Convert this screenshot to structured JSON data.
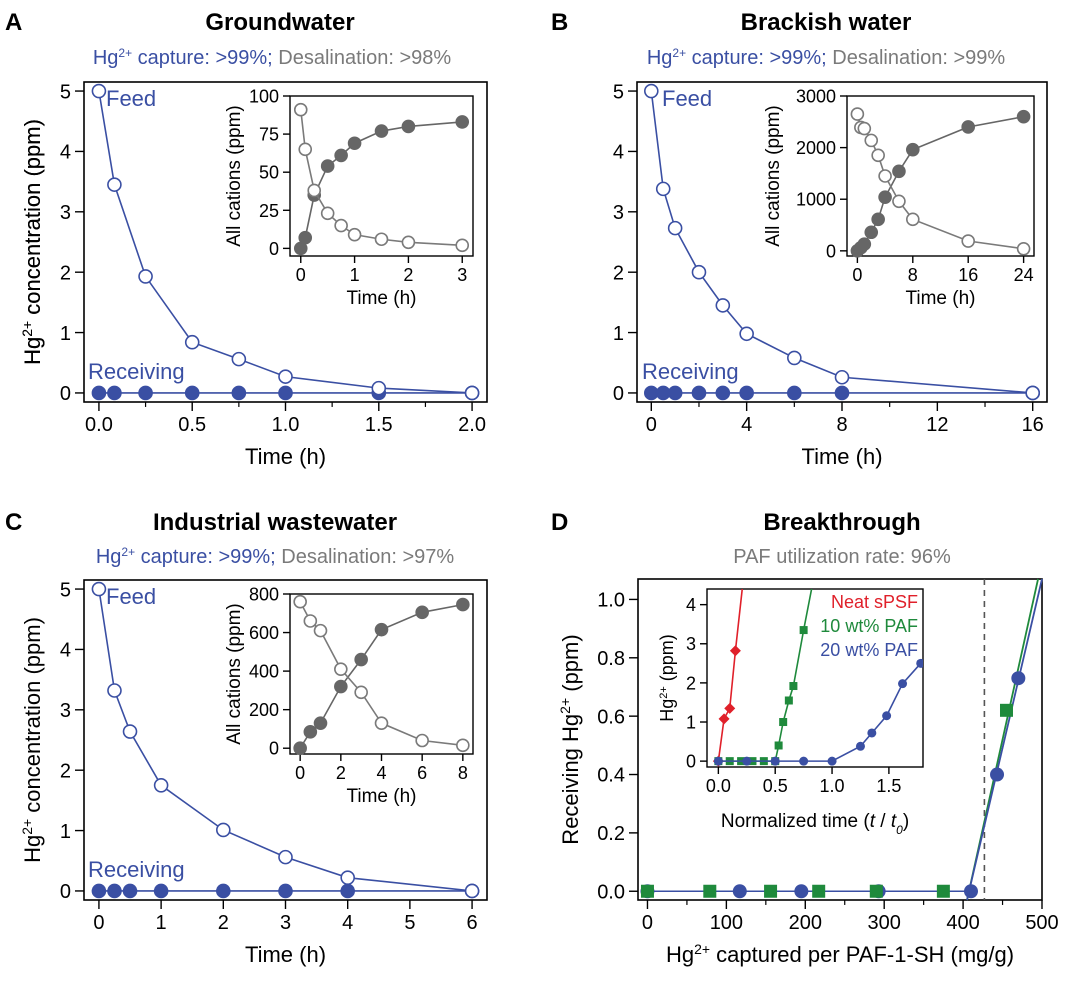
{
  "colors": {
    "blue": "#3a4fa3",
    "gray": "#7a7a7a",
    "darkgray": "#666666",
    "red": "#e0202a",
    "green": "#1f8a3c",
    "dash": "#555555"
  },
  "chart_data": [
    {
      "panel": "A",
      "type": "line",
      "title": "Groundwater",
      "subtitle": {
        "blue_pre": "Hg",
        "blue_sup": "2+",
        "blue_post": " capture: >99%;",
        "gray": " Desalination: >98%"
      },
      "xlabel": "Time (h)",
      "ylabel": {
        "pre": "Hg",
        "sup": "2+",
        "post": " concentration (ppm)"
      },
      "xlim": [
        -0.08,
        2.08
      ],
      "ylim": [
        -0.15,
        5.15
      ],
      "xticks": [
        0.0,
        0.5,
        1.0,
        1.5,
        2.0
      ],
      "xtick_labels": [
        "0.0",
        "0.5",
        "1.0",
        "1.5",
        "2.0"
      ],
      "yticks": [
        0,
        1,
        2,
        3,
        4,
        5
      ],
      "ytick_labels": [
        "0",
        "1",
        "2",
        "3",
        "4",
        "5"
      ],
      "minor_x": [
        0.25,
        0.75,
        1.25,
        1.75
      ],
      "annotations": {
        "feed": "Feed",
        "receiving": "Receiving"
      },
      "series": [
        {
          "name": "Feed",
          "x": [
            0,
            0.083,
            0.25,
            0.5,
            0.75,
            1.0,
            1.5,
            2.0
          ],
          "y": [
            5.0,
            3.45,
            1.93,
            0.84,
            0.56,
            0.27,
            0.08,
            0.0
          ]
        },
        {
          "name": "Receiving",
          "x": [
            0,
            0.083,
            0.25,
            0.5,
            0.75,
            1.0,
            1.5,
            2.0
          ],
          "y": [
            0,
            0,
            0,
            0,
            0,
            0,
            0,
            0
          ]
        }
      ],
      "inset": {
        "xlabel": "Time (h)",
        "ylabel": "All cations (ppm)",
        "xlim": [
          -0.2,
          3.2
        ],
        "ylim": [
          -5,
          100
        ],
        "xticks": [
          0,
          1,
          2,
          3
        ],
        "xtick_labels": [
          "0",
          "1",
          "2",
          "3"
        ],
        "yticks": [
          0,
          25,
          50,
          75,
          100
        ],
        "ytick_labels": [
          "0",
          "25",
          "50",
          "75",
          "100"
        ],
        "series": [
          {
            "name": "Feed",
            "x": [
              0,
              0.083,
              0.25,
              0.5,
              0.75,
              1.0,
              1.5,
              2.0,
              3.0
            ],
            "y": [
              91,
              65,
              38,
              23,
              15,
              9,
              6,
              4,
              2
            ]
          },
          {
            "name": "Receiving",
            "x": [
              0,
              0.083,
              0.25,
              0.5,
              0.75,
              1.0,
              1.5,
              2.0,
              3.0
            ],
            "y": [
              0,
              7,
              35,
              54,
              61,
              69,
              77,
              80,
              83
            ]
          }
        ]
      }
    },
    {
      "panel": "B",
      "type": "line",
      "title": "Brackish water",
      "subtitle": {
        "blue_pre": "Hg",
        "blue_sup": "2+",
        "blue_post": " capture: >99%;",
        "gray": " Desalination: >99%"
      },
      "xlabel": "Time (h)",
      "ylabel": {
        "pre": "Hg",
        "sup": "2+",
        "post": " concentration (ppm)"
      },
      "xlim": [
        -0.6,
        16.6
      ],
      "ylim": [
        -0.15,
        5.15
      ],
      "xticks": [
        0,
        4,
        8,
        12,
        16
      ],
      "xtick_labels": [
        "0",
        "4",
        "8",
        "12",
        "16"
      ],
      "yticks": [
        0,
        1,
        2,
        3,
        4,
        5
      ],
      "ytick_labels": [
        "0",
        "1",
        "2",
        "3",
        "4",
        "5"
      ],
      "minor_x": [
        2,
        6,
        10,
        14
      ],
      "annotations": {
        "feed": "Feed",
        "receiving": "Receiving"
      },
      "series": [
        {
          "name": "Feed",
          "x": [
            0,
            0.5,
            1,
            2,
            3,
            4,
            6,
            8,
            16
          ],
          "y": [
            5.0,
            3.38,
            2.73,
            2.0,
            1.45,
            0.98,
            0.58,
            0.26,
            0.0
          ]
        },
        {
          "name": "Receiving",
          "x": [
            0,
            0.5,
            1,
            2,
            3,
            4,
            6,
            8,
            16
          ],
          "y": [
            0,
            0,
            0,
            0,
            0,
            0,
            0,
            0,
            0
          ]
        }
      ],
      "inset": {
        "xlabel": "Time (h)",
        "ylabel": "All cations (ppm)",
        "xlim": [
          -1.5,
          25.5
        ],
        "ylim": [
          -100,
          3000
        ],
        "xticks": [
          0,
          8,
          16,
          24
        ],
        "xtick_labels": [
          "0",
          "8",
          "16",
          "24"
        ],
        "yticks": [
          0,
          1000,
          2000,
          3000
        ],
        "ytick_labels": [
          "0",
          "1000",
          "2000",
          "3000"
        ],
        "series": [
          {
            "name": "Feed",
            "x": [
              0,
              0.5,
              1,
              2,
              3,
              4,
              6,
              8,
              16,
              24
            ],
            "y": [
              2650,
              2390,
              2370,
              2140,
              1850,
              1450,
              960,
              610,
              190,
              40
            ]
          },
          {
            "name": "Receiving",
            "x": [
              0,
              0.5,
              1,
              2,
              3,
              4,
              6,
              8,
              16,
              24
            ],
            "y": [
              0,
              60,
              130,
              360,
              610,
              1040,
              1540,
              1960,
              2400,
              2600
            ]
          }
        ]
      }
    },
    {
      "panel": "C",
      "type": "line",
      "title": "Industrial wastewater",
      "subtitle": {
        "blue_pre": "Hg",
        "blue_sup": "2+",
        "blue_post": " capture: >99%;",
        "gray": " Desalination: >97%"
      },
      "xlabel": "Time (h)",
      "ylabel": {
        "pre": "Hg",
        "sup": "2+",
        "post": " concentration (ppm)"
      },
      "xlim": [
        -0.24,
        6.24
      ],
      "ylim": [
        -0.15,
        5.15
      ],
      "xticks": [
        0,
        1,
        2,
        3,
        4,
        5,
        6
      ],
      "xtick_labels": [
        "0",
        "1",
        "2",
        "3",
        "4",
        "5",
        "6"
      ],
      "yticks": [
        0,
        1,
        2,
        3,
        4,
        5
      ],
      "ytick_labels": [
        "0",
        "1",
        "2",
        "3",
        "4",
        "5"
      ],
      "minor_x": [],
      "annotations": {
        "feed": "Feed",
        "receiving": "Receiving"
      },
      "series": [
        {
          "name": "Feed",
          "x": [
            0,
            0.25,
            0.5,
            1,
            2,
            3,
            4,
            6
          ],
          "y": [
            5.0,
            3.32,
            2.64,
            1.75,
            1.01,
            0.56,
            0.22,
            0.0
          ]
        },
        {
          "name": "Receiving",
          "x": [
            0,
            0.25,
            0.5,
            1,
            2,
            3,
            4,
            6
          ],
          "y": [
            0,
            0,
            0,
            0,
            0,
            0,
            0,
            0
          ]
        }
      ],
      "inset": {
        "xlabel": "Time (h)",
        "ylabel": "All cations (ppm)",
        "xlim": [
          -0.5,
          8.5
        ],
        "ylim": [
          -30,
          800
        ],
        "xticks": [
          0,
          2,
          4,
          6,
          8
        ],
        "xtick_labels": [
          "0",
          "2",
          "4",
          "6",
          "8"
        ],
        "yticks": [
          0,
          200,
          400,
          600,
          800
        ],
        "ytick_labels": [
          "0",
          "200",
          "400",
          "600",
          "800"
        ],
        "series": [
          {
            "name": "Feed",
            "x": [
              0,
              0.5,
              1,
              2,
              3,
              4,
              6,
              8
            ],
            "y": [
              760,
              660,
              610,
              410,
              290,
              130,
              40,
              15
            ]
          },
          {
            "name": "Receiving",
            "x": [
              0,
              0.5,
              1,
              2,
              3,
              4,
              6,
              8
            ],
            "y": [
              0,
              85,
              130,
              320,
              460,
              615,
              705,
              745
            ]
          }
        ]
      }
    },
    {
      "panel": "D",
      "type": "scatter",
      "title": "Breakthrough",
      "subtitle": {
        "gray": "PAF utilization rate: 96%"
      },
      "xlabel": {
        "pre": "Hg",
        "sup": "2+",
        "post": " captured per PAF-1-SH (mg/g)"
      },
      "ylabel": {
        "pre": "Receiving Hg",
        "sup": "2+",
        "post": " (ppm)"
      },
      "xlim": [
        -12,
        500
      ],
      "ylim": [
        -0.03,
        1.07
      ],
      "xticks": [
        0,
        100,
        200,
        300,
        400,
        500
      ],
      "xtick_labels": [
        "0",
        "100",
        "200",
        "300",
        "400",
        "500"
      ],
      "yticks": [
        0.0,
        0.2,
        0.4,
        0.6,
        0.8,
        1.0
      ],
      "ytick_labels": [
        "0.0",
        "0.2",
        "0.4",
        "0.6",
        "0.8",
        "1.0"
      ],
      "minor_x": [
        50,
        150,
        250,
        350,
        450
      ],
      "vline_x": 427,
      "series": [
        {
          "name": "20 wt% PAF",
          "x": [
            0,
            117,
            195,
            293,
            410,
            443,
            470
          ],
          "y": [
            0,
            0,
            0,
            0,
            0,
            0.4,
            0.73
          ]
        },
        {
          "name": "10 wt% PAF",
          "x": [
            0,
            79,
            156,
            217,
            290,
            375,
            455
          ],
          "y": [
            0,
            0,
            0,
            0,
            0,
            0,
            0.62
          ]
        }
      ],
      "fit_lines": [
        {
          "name": "20 wt% PAF",
          "x": [
            405,
            500
          ],
          "y": [
            -0.03,
            1.07
          ]
        },
        {
          "name": "10 wt% PAF",
          "x": [
            405,
            495
          ],
          "y": [
            -0.03,
            1.07
          ]
        }
      ],
      "inset": {
        "xlabel": {
          "pre": "Normalized time (",
          "t": "t",
          "slash": " / ",
          "t0": "t",
          "sub": "0",
          "post": ")"
        },
        "ylabel": {
          "pre": "Hg",
          "sup": "2+",
          "post": " (ppm)"
        },
        "xlim": [
          -0.1,
          1.8
        ],
        "ylim": [
          -0.15,
          4.4
        ],
        "xticks": [
          0,
          0.5,
          1.0,
          1.5
        ],
        "xtick_labels": [
          "0.0",
          "0.5",
          "1.0",
          "1.5"
        ],
        "yticks": [
          0,
          1,
          2,
          3,
          4
        ],
        "ytick_labels": [
          "0",
          "1",
          "2",
          "3",
          "4"
        ],
        "legend": [
          "Neat sPSF",
          "10 wt% PAF",
          "20 wt% PAF"
        ],
        "series": [
          {
            "name": "Neat sPSF",
            "x": [
              0,
              0.05,
              0.1,
              0.15,
              0.21
            ],
            "y": [
              0,
              1.08,
              1.35,
              2.82,
              4.4
            ]
          },
          {
            "name": "10 wt% PAF",
            "x": [
              0,
              0.1,
              0.2,
              0.3,
              0.4,
              0.5,
              0.53,
              0.57,
              0.62,
              0.66,
              0.75,
              0.82
            ],
            "y": [
              0,
              0,
              0,
              0,
              0,
              0,
              0.4,
              1.0,
              1.55,
              1.92,
              3.35,
              4.4
            ]
          },
          {
            "name": "20 wt% PAF",
            "x": [
              0,
              0.25,
              0.5,
              0.75,
              1.0,
              1.25,
              1.35,
              1.48,
              1.62,
              1.78
            ],
            "y": [
              0,
              0,
              0,
              0,
              0,
              0.38,
              0.72,
              1.16,
              1.98,
              2.5
            ]
          }
        ]
      }
    }
  ]
}
